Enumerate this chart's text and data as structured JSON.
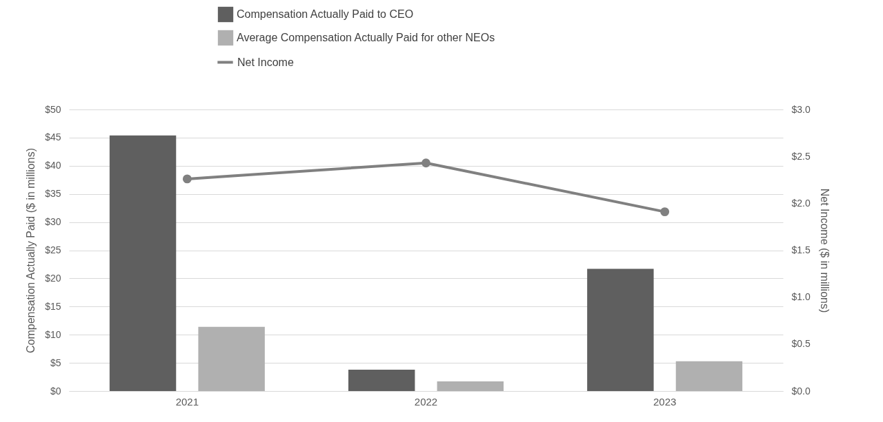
{
  "chart_data": {
    "type": "bar",
    "categories": [
      "2021",
      "2022",
      "2023"
    ],
    "ylabel": "Compensation  Actually Paid ($ in millions)",
    "y2label": "Net Income ($ in millions)",
    "series": [
      {
        "name": "Compensation Actually Paid to CEO",
        "color": "#5f5f5f",
        "values": [
          45.4,
          3.8,
          21.7
        ]
      },
      {
        "name": "Average Compensation Actually Paid for other NEOs",
        "color": "#b0b0b0",
        "values": [
          11.4,
          1.7,
          5.3
        ]
      },
      {
        "name": "Net Income",
        "type": "line",
        "axis": "y2",
        "color": "#808080",
        "marker": "circle",
        "values": [
          2.26,
          2.43,
          1.91
        ]
      }
    ],
    "ylim": [
      0,
      50
    ],
    "yticks": [
      {
        "value": 0,
        "label": "$0"
      },
      {
        "value": 5,
        "label": "$5"
      },
      {
        "value": 10,
        "label": "$10"
      },
      {
        "value": 15,
        "label": "$15"
      },
      {
        "value": 20,
        "label": "$20"
      },
      {
        "value": 25,
        "label": "$25"
      },
      {
        "value": 30,
        "label": "$30"
      },
      {
        "value": 35,
        "label": "$35"
      },
      {
        "value": 40,
        "label": "$40"
      },
      {
        "value": 45,
        "label": "$45"
      },
      {
        "value": 50,
        "label": "$50"
      }
    ],
    "y2lim": [
      0,
      3
    ],
    "y2ticks": [
      {
        "value": 0,
        "label": "$0.0"
      },
      {
        "value": 0.5,
        "label": "$0.5"
      },
      {
        "value": 1,
        "label": "$1.0"
      },
      {
        "value": 1.5,
        "label": "$1.5"
      },
      {
        "value": 2,
        "label": "$2.0"
      },
      {
        "value": 2.5,
        "label": "$2.5"
      },
      {
        "value": 3,
        "label": "$3.0"
      }
    ],
    "grid": "y",
    "legend": "top"
  }
}
